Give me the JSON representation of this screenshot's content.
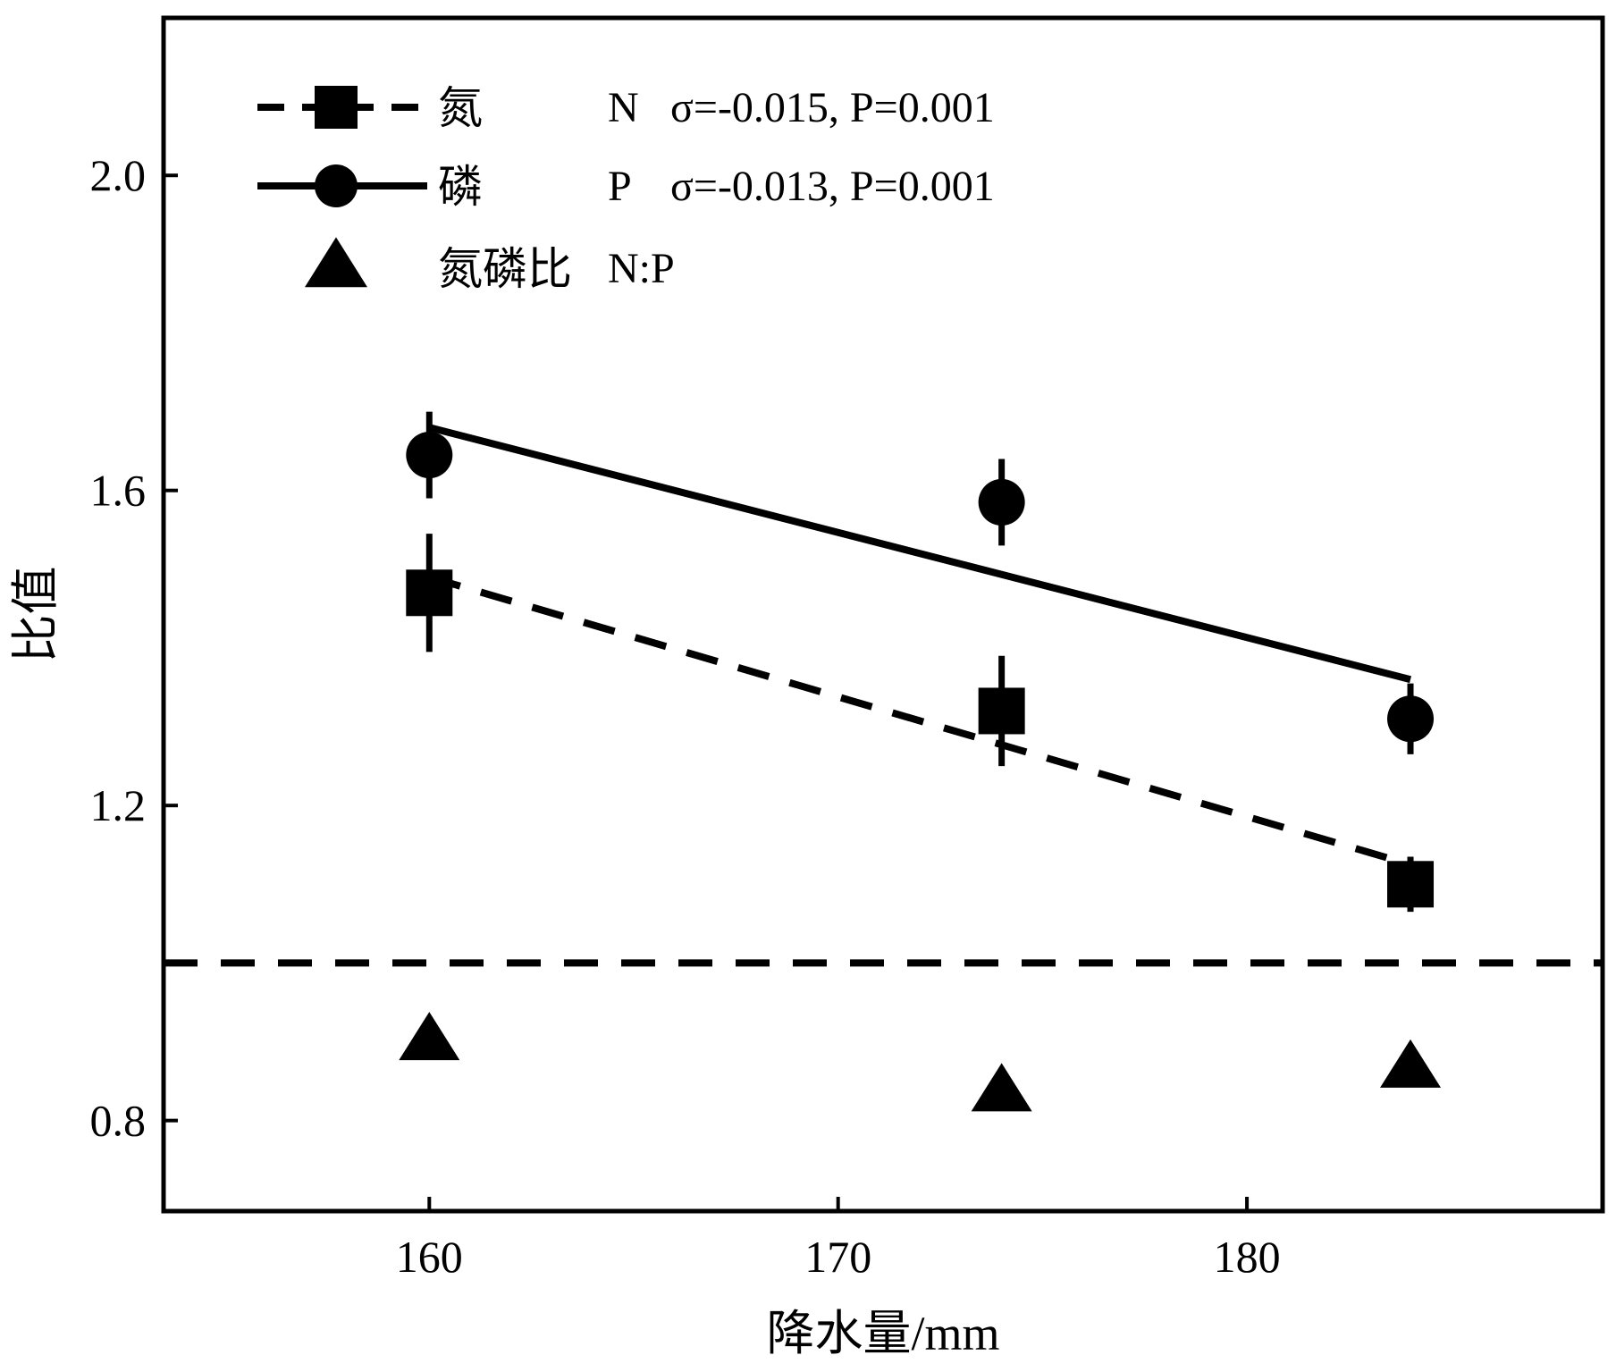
{
  "chart_data": {
    "type": "scatter",
    "title": "",
    "xlabel": "降水量/mm",
    "ylabel": "比值",
    "xlim": [
      153.5,
      188.7
    ],
    "ylim": [
      0.685,
      2.2
    ],
    "xticks": [
      160,
      170,
      180
    ],
    "xtick_labels": [
      "160",
      "170",
      "180"
    ],
    "yticks": [
      0.8,
      1.2,
      1.6,
      2.0
    ],
    "ytick_labels": [
      "0.8",
      "1.2",
      "1.6",
      "2.0"
    ],
    "grid": false,
    "legend_position": "top-left",
    "reference_line": {
      "y": 1.0,
      "style": "dashed"
    },
    "series": [
      {
        "key": "nitrogen",
        "name": "氮",
        "legend_code": "N",
        "stat_text": "σ=-0.015, P=0.001",
        "marker": "square",
        "fit_style": "dashed",
        "color": "#000000",
        "x": [
          160,
          174,
          184
        ],
        "y": [
          1.47,
          1.32,
          1.1
        ],
        "err": [
          0.075,
          0.07,
          0.035
        ],
        "fit": {
          "x": [
            160,
            184
          ],
          "y": [
            1.49,
            1.125
          ]
        }
      },
      {
        "key": "phosphorus",
        "name": "磷",
        "legend_code": "P",
        "stat_text": "σ=-0.013, P=0.001",
        "marker": "circle",
        "fit_style": "solid",
        "color": "#000000",
        "x": [
          160,
          174,
          184
        ],
        "y": [
          1.645,
          1.585,
          1.31
        ],
        "err": [
          0.055,
          0.055,
          0.045
        ],
        "fit": {
          "x": [
            160,
            184
          ],
          "y": [
            1.68,
            1.36
          ]
        }
      },
      {
        "key": "np_ratio",
        "name": "氮磷比",
        "legend_code": "N:P",
        "stat_text": "",
        "marker": "triangle",
        "fit_style": "none",
        "color": "#000000",
        "x": [
          160,
          174,
          184
        ],
        "y": [
          0.9,
          0.835,
          0.865
        ],
        "err": [
          0,
          0,
          0
        ],
        "fit": null
      }
    ]
  }
}
